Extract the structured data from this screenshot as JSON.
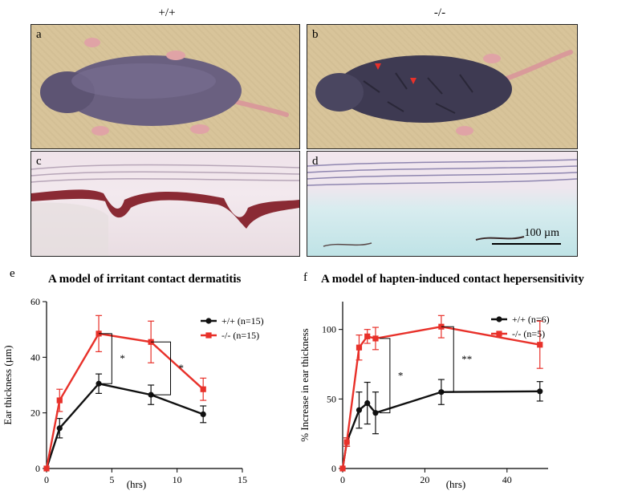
{
  "columns": {
    "wildtype": "+/+",
    "knockout": "-/-"
  },
  "panels": {
    "a": "a",
    "b": "b",
    "c": "c",
    "d": "d",
    "scale_bar": "100 µm"
  },
  "figure_e": {
    "letter": "e",
    "title": "A model of irritant contact dermatitis"
  },
  "figure_f": {
    "letter": "f",
    "title": "A model of hapten-induced contact hepersensitivity"
  },
  "colors": {
    "wildtype": "#111111",
    "knockout": "#e8312a"
  },
  "chart_data": [
    {
      "type": "line",
      "title": "A model of irritant contact dermatitis",
      "xlabel": "(hrs)",
      "ylabel": "Ear thickness (µm)",
      "xlim": [
        0,
        15
      ],
      "ylim": [
        0,
        60
      ],
      "xticks": [
        0,
        5,
        10,
        15
      ],
      "yticks": [
        0,
        20,
        40,
        60
      ],
      "grid": false,
      "legend_position": "right",
      "series": [
        {
          "name": "+/+ (n=15)",
          "x": [
            0,
            1,
            4,
            8,
            12
          ],
          "y": [
            0,
            14.5,
            30.5,
            26.5,
            19.5
          ],
          "err": [
            0,
            3.5,
            3.5,
            3.5,
            3
          ]
        },
        {
          "name": "-/- (n=15)",
          "x": [
            0,
            1,
            4,
            8,
            12
          ],
          "y": [
            0,
            24.5,
            48.5,
            45.5,
            28.5
          ],
          "err": [
            0,
            4,
            6.5,
            7.5,
            4
          ]
        }
      ],
      "annotations": [
        {
          "text": "*",
          "x": 5
        },
        {
          "text": "*",
          "x": 9.5
        }
      ]
    },
    {
      "type": "line",
      "title": "A model of hapten-induced contact hepersensitivity",
      "xlabel": "(hrs)",
      "ylabel": "% Increase in ear thickness",
      "xlim": [
        0,
        50
      ],
      "ylim": [
        0,
        120
      ],
      "xticks": [
        0,
        20,
        40
      ],
      "yticks": [
        0,
        50,
        100
      ],
      "grid": false,
      "legend_position": "right",
      "series": [
        {
          "name": "+/+ (n=6)",
          "x": [
            0,
            1,
            4,
            6,
            8,
            24,
            48
          ],
          "y": [
            0,
            19,
            42,
            47,
            40,
            55,
            55.5
          ],
          "err": [
            0,
            3,
            13,
            15,
            15,
            9,
            7
          ]
        },
        {
          "name": "-/- (n=5)",
          "x": [
            0,
            1,
            4,
            6,
            8,
            24,
            48
          ],
          "y": [
            0,
            19,
            87,
            95,
            93.5,
            102,
            89
          ],
          "err": [
            0,
            3,
            9,
            5,
            8,
            8,
            17
          ]
        }
      ],
      "annotations": [
        {
          "text": "*",
          "x": 13.5
        },
        {
          "text": "**",
          "x": 29
        }
      ]
    }
  ]
}
